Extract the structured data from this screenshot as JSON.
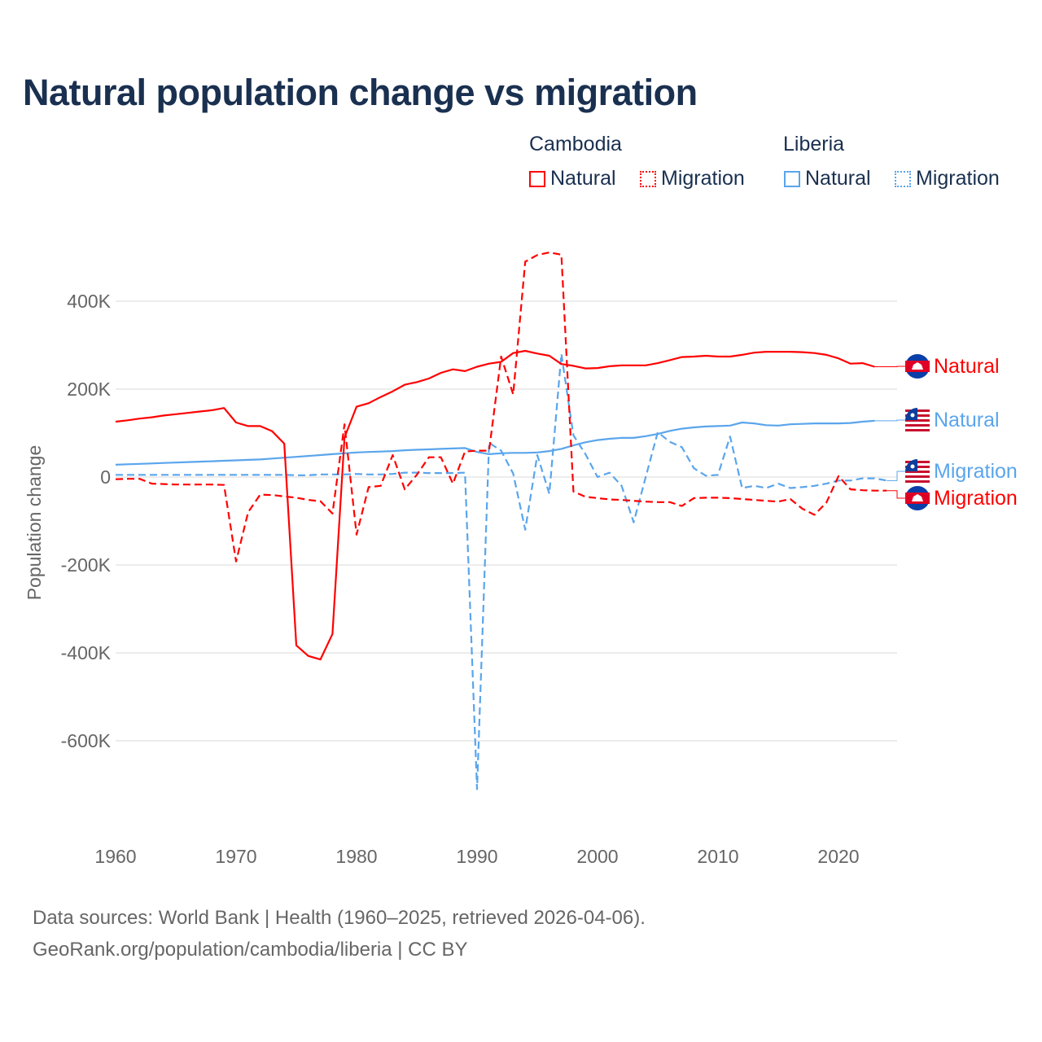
{
  "title": "Natural population change vs migration",
  "legend": {
    "groups": [
      {
        "name": "Cambodia",
        "items": [
          "Natural",
          "Migration"
        ],
        "color": "#ff0000"
      },
      {
        "name": "Liberia",
        "items": [
          "Natural",
          "Migration"
        ],
        "color": "#5aa5ec"
      }
    ]
  },
  "footer": {
    "line1": "Data sources: World Bank | Health (1960–2025, retrieved 2026-04-06).",
    "line2": "GeoRank.org/population/cambodia/liberia | CC BY"
  },
  "chart_data": {
    "type": "line",
    "title": "Natural population change vs migration",
    "xlabel": "",
    "ylabel": "Population change",
    "xlim": [
      1960,
      2025
    ],
    "ylim": [
      -780000,
      560000
    ],
    "xticks": [
      1960,
      1970,
      1980,
      1990,
      2000,
      2010,
      2020
    ],
    "xtick_labels": [
      "1960",
      "1970",
      "1980",
      "1990",
      "2000",
      "2010",
      "2020"
    ],
    "yticks": [
      400000,
      200000,
      0,
      -200000,
      -400000,
      -600000
    ],
    "ytick_labels": [
      "400K",
      "200K",
      "0",
      "-200K",
      "-400K",
      "-600K"
    ],
    "grid": true,
    "series": [
      {
        "name": "Cambodia Natural",
        "label": "Natural",
        "country": "Cambodia",
        "color": "#ff0000",
        "dash": false,
        "start": 1960,
        "values_k": [
          126,
          129,
          133,
          136,
          140,
          143,
          146,
          149,
          152,
          157,
          124,
          116,
          116,
          104,
          76,
          -383,
          -407,
          -415,
          -357,
          90,
          160,
          168,
          182,
          195,
          210,
          216,
          224,
          237,
          245,
          241,
          251,
          258,
          262,
          282,
          287,
          281,
          276,
          257,
          253,
          247,
          248,
          252,
          254,
          254,
          254,
          259,
          266,
          273,
          274,
          276,
          274,
          274,
          278,
          283,
          285,
          285,
          285,
          284,
          282,
          278,
          270,
          258,
          259,
          251
        ]
      },
      {
        "name": "Cambodia Migration",
        "label": "Migration",
        "country": "Cambodia",
        "color": "#ff0000",
        "dash": true,
        "start": 1960,
        "values_k": [
          -5,
          -4,
          -4,
          -15,
          -16,
          -17,
          -17,
          -17,
          -17,
          -18,
          -192,
          -80,
          -40,
          -41,
          -44,
          -47,
          -52,
          -55,
          -83,
          120,
          -131,
          -23,
          -20,
          50,
          -28,
          5,
          45,
          45,
          -15,
          58,
          60,
          60,
          274,
          188,
          490,
          505,
          511,
          506,
          -33,
          -45,
          -48,
          -51,
          -52,
          -54,
          -56,
          -57,
          -57,
          -66,
          -48,
          -47,
          -47,
          -48,
          -50,
          -52,
          -54,
          -56,
          -50,
          -72,
          -86,
          -58,
          2,
          -28,
          -30,
          -31,
          -31
        ]
      },
      {
        "name": "Liberia Natural",
        "label": "Natural",
        "country": "Liberia",
        "color": "#5aa5ec",
        "dash": false,
        "start": 1960,
        "values_k": [
          28,
          29,
          30,
          31,
          32,
          33,
          34,
          35,
          36,
          37,
          38,
          39,
          40,
          42,
          44,
          46,
          48,
          50,
          52,
          54,
          56,
          57,
          58,
          59,
          61,
          62,
          63,
          64,
          65,
          66,
          57,
          52,
          54,
          55,
          55,
          56,
          59,
          64,
          72,
          79,
          84,
          87,
          89,
          89,
          93,
          98,
          105,
          110,
          113,
          115,
          116,
          117,
          124,
          122,
          118,
          117,
          120,
          121,
          122,
          122,
          122,
          123,
          126,
          128
        ]
      },
      {
        "name": "Liberia Migration",
        "label": "Migration",
        "country": "Liberia",
        "color": "#5aa5ec",
        "dash": true,
        "start": 1960,
        "values_k": [
          5,
          5,
          5,
          5,
          5,
          5,
          5,
          5,
          5,
          5,
          5,
          5,
          5,
          5,
          5,
          4,
          4,
          6,
          6,
          6,
          7,
          6,
          6,
          7,
          10,
          10,
          9,
          9,
          9,
          10,
          -710,
          78,
          60,
          8,
          -120,
          50,
          -38,
          280,
          95,
          52,
          0,
          10,
          -20,
          -103,
          0,
          102,
          80,
          68,
          20,
          3,
          5,
          92,
          -25,
          -20,
          -25,
          -15,
          -25,
          -23,
          -20,
          -15,
          -8,
          -8,
          -3,
          -3,
          -8
        ]
      }
    ],
    "end_labels": [
      {
        "text": "Natural",
        "country": "Cambodia",
        "color": "#ff0000"
      },
      {
        "text": "Natural",
        "country": "Liberia",
        "color": "#5aa5ec"
      },
      {
        "text": "Migration",
        "country": "Liberia",
        "color": "#5aa5ec"
      },
      {
        "text": "Migration",
        "country": "Cambodia",
        "color": "#ff0000"
      }
    ]
  }
}
